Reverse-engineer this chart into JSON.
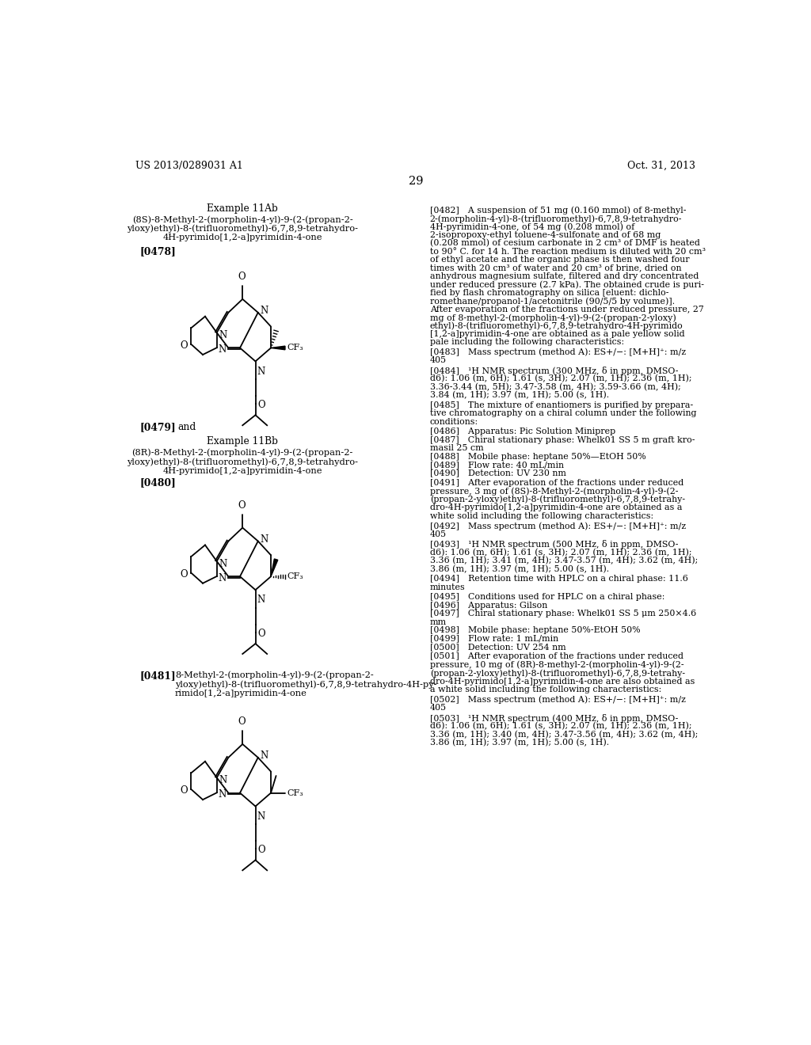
{
  "background_color": "#ffffff",
  "page_number": "29",
  "header_left": "US 2013/0289031 A1",
  "header_right": "Oct. 31, 2013"
}
